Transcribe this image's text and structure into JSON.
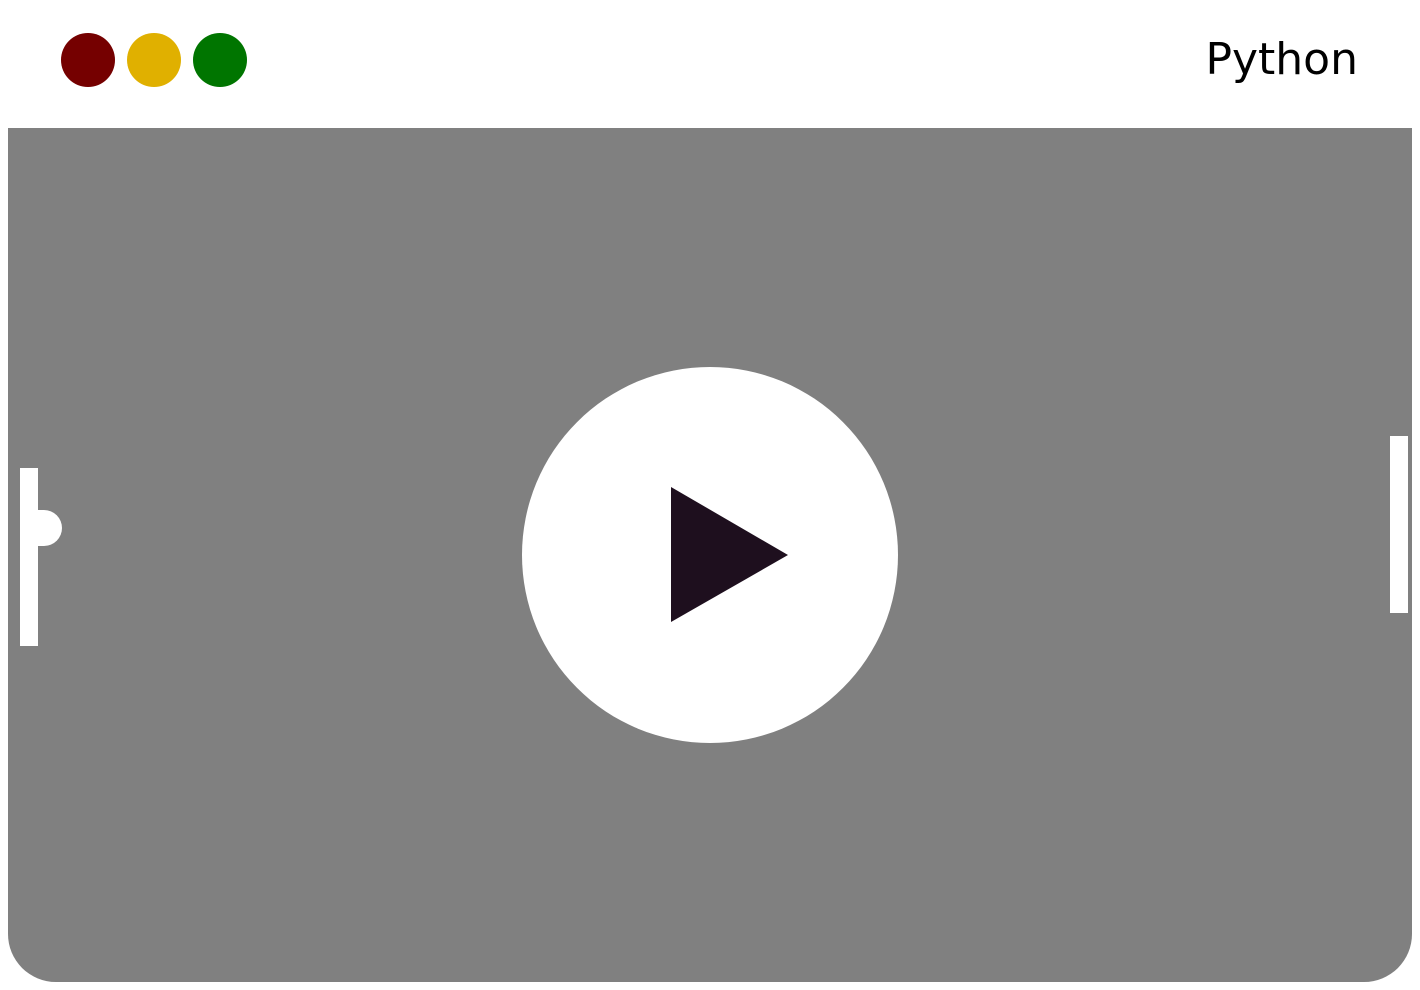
{
  "window": {
    "title": "Python",
    "controls": [
      {
        "name": "close",
        "color": "#750000"
      },
      {
        "name": "minimize",
        "color": "#E0B000"
      },
      {
        "name": "maximize",
        "color": "#007500"
      }
    ]
  },
  "game": {
    "background_color": "#808080",
    "foreground_color": "#FFFFFF",
    "play_icon_color": "#1E0F1E",
    "icons": {
      "play": "play-triangle-icon"
    }
  }
}
